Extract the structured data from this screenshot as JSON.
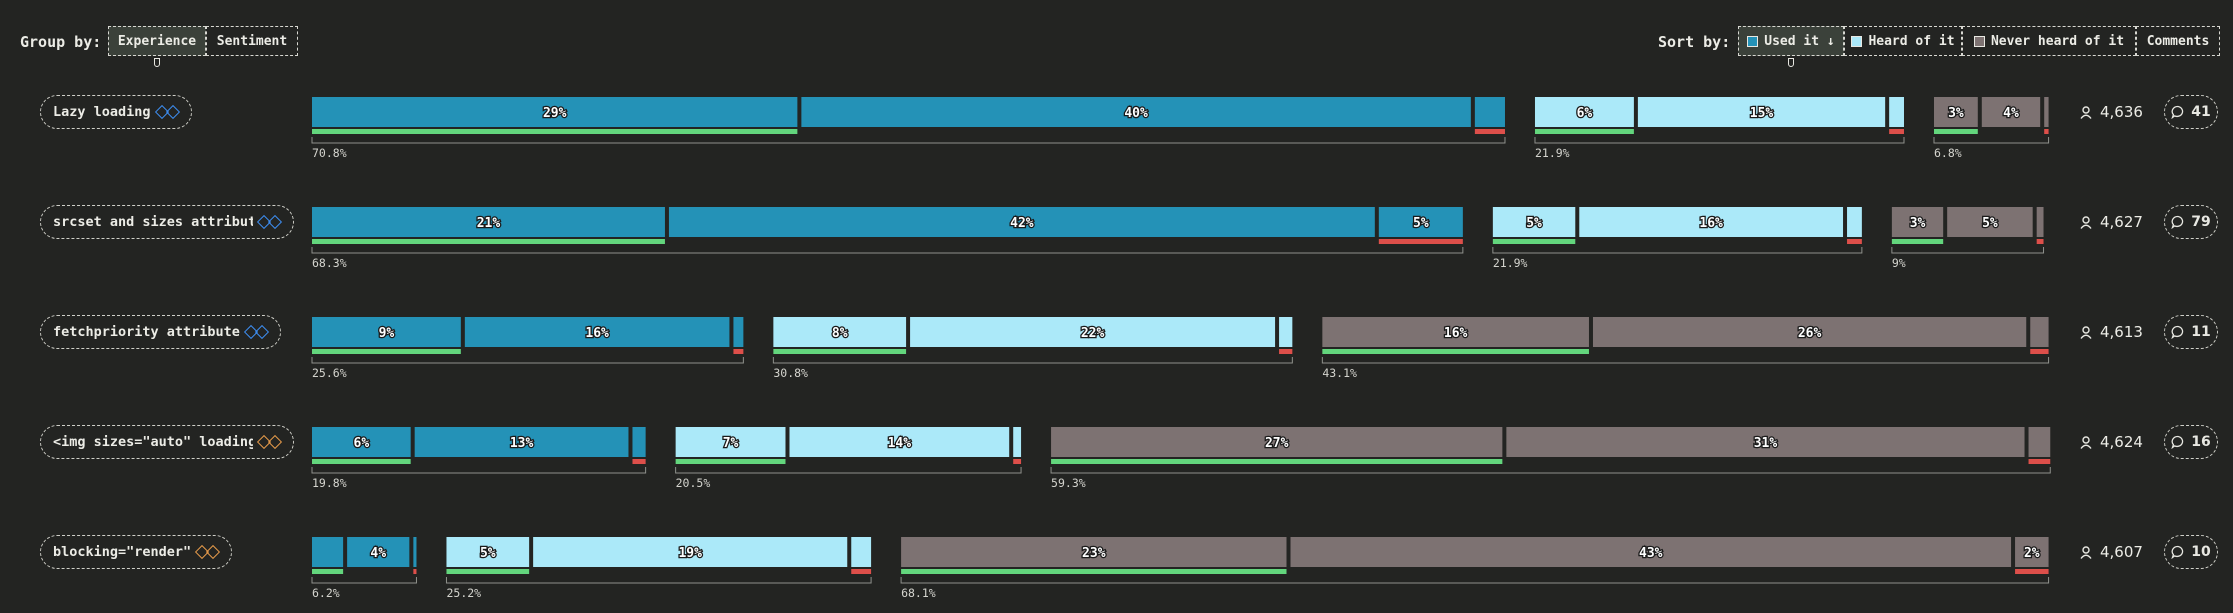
{
  "controls": {
    "group_by_label": "Group by:",
    "group_by_options": [
      "Experience",
      "Sentiment"
    ],
    "sort_by_label": "Sort by:",
    "sort_options": [
      "Used it ↓",
      "Heard of it",
      "Never heard of it",
      "Comments"
    ],
    "colors": {
      "used": "#2492b7",
      "heard": "#abe9f9",
      "never": "#7d7272",
      "positive": "#63d67d",
      "negative": "#dd4f4a"
    }
  },
  "chart_data": {
    "type": "bar",
    "stacking": "grouped-horizontal",
    "groups": [
      "Used it",
      "Heard of it",
      "Never heard of it"
    ],
    "segment_order": [
      "positive",
      "neutral",
      "negative"
    ],
    "features": [
      {
        "name": "Lazy loading",
        "icon": "blue-diamonds-icon",
        "icon_color": "#3d8df0",
        "respondents": "4,636",
        "comments": "41",
        "groups": [
          {
            "total": 70.8,
            "total_label": "70.8%",
            "segments": [
              29,
              40,
              1.8
            ],
            "labels": [
              "29%",
              "40%",
              ""
            ]
          },
          {
            "total": 21.9,
            "total_label": "21.9%",
            "segments": [
              6,
              15,
              0.9
            ],
            "labels": [
              "6%",
              "15%",
              ""
            ]
          },
          {
            "total": 6.8,
            "total_label": "6.8%",
            "segments": [
              3,
              4,
              0.3
            ],
            "labels": [
              "3%",
              "4%",
              ""
            ]
          }
        ]
      },
      {
        "name": "srcset and sizes attribute",
        "icon": "blue-diamonds-icon",
        "icon_color": "#3d8df0",
        "respondents": "4,627",
        "comments": "79",
        "groups": [
          {
            "total": 68.3,
            "total_label": "68.3%",
            "segments": [
              21,
              42,
              5
            ],
            "labels": [
              "21%",
              "42%",
              "5%"
            ]
          },
          {
            "total": 21.9,
            "total_label": "21.9%",
            "segments": [
              5,
              16,
              0.9
            ],
            "labels": [
              "5%",
              "16%",
              ""
            ]
          },
          {
            "total": 9,
            "total_label": "9%",
            "segments": [
              3,
              5,
              0.4
            ],
            "labels": [
              "3%",
              "5%",
              ""
            ]
          }
        ]
      },
      {
        "name": "fetchpriority attribute",
        "icon": "blue-diamonds-icon",
        "icon_color": "#3d8df0",
        "respondents": "4,613",
        "comments": "11",
        "groups": [
          {
            "total": 25.6,
            "total_label": "25.6%",
            "segments": [
              9,
              16,
              0.6
            ],
            "labels": [
              "9%",
              "16%",
              ""
            ]
          },
          {
            "total": 30.8,
            "total_label": "30.8%",
            "segments": [
              8,
              22,
              0.8
            ],
            "labels": [
              "8%",
              "22%",
              ""
            ]
          },
          {
            "total": 43.1,
            "total_label": "43.1%",
            "segments": [
              16,
              26,
              1.1
            ],
            "labels": [
              "16%",
              "26%",
              ""
            ]
          }
        ]
      },
      {
        "name": "<img sizes=\"auto\" loading=",
        "icon": "orange-diamonds-icon",
        "icon_color": "#e59a4a",
        "respondents": "4,624",
        "comments": "16",
        "groups": [
          {
            "total": 19.8,
            "total_label": "19.8%",
            "segments": [
              6,
              13,
              0.8
            ],
            "labels": [
              "6%",
              "13%",
              ""
            ]
          },
          {
            "total": 20.5,
            "total_label": "20.5%",
            "segments": [
              7,
              14,
              0.5
            ],
            "labels": [
              "7%",
              "14%",
              ""
            ]
          },
          {
            "total": 59.3,
            "total_label": "59.3%",
            "segments": [
              27,
              31,
              1.3
            ],
            "labels": [
              "27%",
              "31%",
              ""
            ]
          }
        ]
      },
      {
        "name": "blocking=\"render\"",
        "icon": "orange-diamonds-icon",
        "icon_color": "#e59a4a",
        "respondents": "4,607",
        "comments": "10",
        "groups": [
          {
            "total": 6.2,
            "total_label": "6.2%",
            "segments": [
              2,
              4,
              0.2
            ],
            "labels": [
              "",
              "4%",
              ""
            ]
          },
          {
            "total": 25.2,
            "total_label": "25.2%",
            "segments": [
              5,
              19,
              1.2
            ],
            "labels": [
              "5%",
              "19%",
              ""
            ]
          },
          {
            "total": 68.1,
            "total_label": "68.1%",
            "segments": [
              23,
              43,
              2
            ],
            "labels": [
              "23%",
              "43%",
              "2%"
            ]
          }
        ]
      }
    ]
  }
}
